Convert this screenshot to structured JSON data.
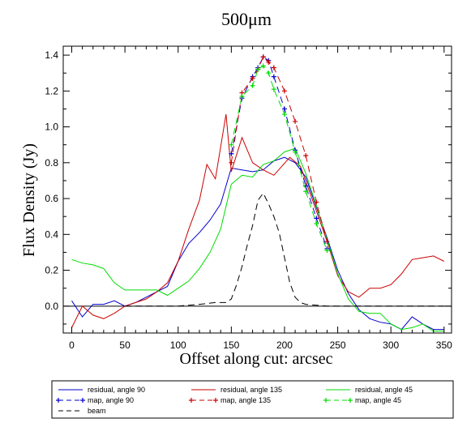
{
  "chart_data": {
    "type": "line",
    "title": "500μm",
    "xlabel": "Offset along cut: arcsec",
    "ylabel": "Flux Density (Jy)",
    "xlim": [
      -8,
      357
    ],
    "ylim": [
      -0.15,
      1.45
    ],
    "xticks": [
      0,
      50,
      100,
      150,
      200,
      250,
      300,
      350
    ],
    "yticks": [
      0.0,
      0.2,
      0.4,
      0.6,
      0.8,
      1.0,
      1.2,
      1.4
    ],
    "ytick_labels": [
      "0.0",
      "0.2",
      "0.4",
      "0.6",
      "0.8",
      "1.0",
      "1.2",
      "1.4"
    ],
    "zero_line": true,
    "legend_position": "bottom",
    "series": [
      {
        "name": "residual, angle 90",
        "color": "#0000cc",
        "style": "solid",
        "marker": "none",
        "x": [
          0,
          10,
          20,
          30,
          40,
          50,
          60,
          70,
          80,
          90,
          100,
          110,
          120,
          130,
          140,
          150,
          160,
          170,
          180,
          190,
          200,
          210,
          220,
          230,
          240,
          250,
          260,
          270,
          280,
          290,
          300,
          310,
          320,
          330,
          340,
          350
        ],
        "y": [
          0.03,
          -0.06,
          0.01,
          0.01,
          0.03,
          0.0,
          0.02,
          0.05,
          0.08,
          0.11,
          0.25,
          0.35,
          0.41,
          0.48,
          0.57,
          0.77,
          0.76,
          0.75,
          0.76,
          0.81,
          0.83,
          0.8,
          0.72,
          0.55,
          0.38,
          0.2,
          0.07,
          -0.02,
          -0.07,
          -0.09,
          -0.1,
          -0.13,
          -0.06,
          -0.1,
          -0.13,
          -0.13
        ]
      },
      {
        "name": "residual, angle 135",
        "color": "#cc0000",
        "style": "solid",
        "marker": "none",
        "x": [
          0,
          10,
          20,
          30,
          40,
          50,
          60,
          70,
          80,
          90,
          100,
          110,
          120,
          127,
          135,
          145,
          150,
          160,
          170,
          180,
          190,
          205,
          215,
          230,
          240,
          250,
          260,
          270,
          280,
          290,
          300,
          310,
          320,
          330,
          340,
          350
        ],
        "y": [
          -0.12,
          0.0,
          -0.05,
          -0.07,
          -0.04,
          0.0,
          0.02,
          0.04,
          0.08,
          0.13,
          0.25,
          0.43,
          0.59,
          0.79,
          0.71,
          1.07,
          0.75,
          0.94,
          0.8,
          0.76,
          0.73,
          0.83,
          0.78,
          0.53,
          0.36,
          0.17,
          0.08,
          0.05,
          0.1,
          0.1,
          0.12,
          0.18,
          0.26,
          0.27,
          0.28,
          0.25
        ]
      },
      {
        "name": "residual, angle 45",
        "color": "#00dd00",
        "style": "solid",
        "marker": "none",
        "x": [
          0,
          10,
          20,
          30,
          40,
          50,
          60,
          70,
          80,
          90,
          100,
          110,
          120,
          130,
          140,
          150,
          160,
          170,
          180,
          190,
          200,
          210,
          220,
          230,
          240,
          250,
          260,
          270,
          280,
          290,
          300,
          310,
          320,
          330,
          340,
          350
        ],
        "y": [
          0.26,
          0.24,
          0.23,
          0.21,
          0.13,
          0.09,
          0.09,
          0.09,
          0.09,
          0.06,
          0.1,
          0.14,
          0.21,
          0.3,
          0.43,
          0.68,
          0.73,
          0.72,
          0.79,
          0.81,
          0.86,
          0.88,
          0.74,
          0.56,
          0.37,
          0.18,
          0.04,
          -0.03,
          -0.04,
          -0.04,
          -0.1,
          -0.13,
          -0.12,
          -0.1,
          -0.14,
          -0.14
        ]
      },
      {
        "name": "map, angle 90",
        "color": "#0000cc",
        "style": "dashed",
        "marker": "plus",
        "x": [
          150,
          160,
          170,
          175,
          180,
          185,
          190,
          200,
          210,
          220,
          230,
          240
        ],
        "y": [
          0.85,
          1.16,
          1.28,
          1.33,
          1.39,
          1.37,
          1.28,
          1.1,
          0.87,
          0.67,
          0.49,
          0.32
        ]
      },
      {
        "name": "map, angle 135",
        "color": "#cc0000",
        "style": "dashed",
        "marker": "plus",
        "x": [
          150,
          160,
          170,
          175,
          180,
          185,
          190,
          200,
          210,
          220,
          230,
          240
        ],
        "y": [
          0.8,
          1.19,
          1.27,
          1.32,
          1.39,
          1.36,
          1.33,
          1.2,
          1.03,
          0.84,
          0.58,
          0.36
        ]
      },
      {
        "name": "map, angle 45",
        "color": "#00dd00",
        "style": "dashed",
        "marker": "plus",
        "x": [
          150,
          160,
          170,
          175,
          180,
          185,
          190,
          200,
          210,
          220,
          230,
          240
        ],
        "y": [
          0.9,
          1.17,
          1.23,
          1.32,
          1.34,
          1.3,
          1.21,
          1.07,
          0.86,
          0.64,
          0.46,
          0.31
        ]
      },
      {
        "name": "beam",
        "color": "#000000",
        "style": "dashed",
        "marker": "none",
        "x": [
          50,
          80,
          100,
          120,
          135,
          145,
          150,
          155,
          160,
          165,
          170,
          175,
          180,
          185,
          190,
          195,
          200,
          205,
          210,
          215,
          220,
          240,
          270,
          300,
          350
        ],
        "y": [
          0.0,
          0.0,
          0.0,
          0.01,
          0.02,
          0.02,
          0.04,
          0.12,
          0.22,
          0.34,
          0.45,
          0.59,
          0.63,
          0.57,
          0.5,
          0.41,
          0.27,
          0.13,
          0.05,
          0.02,
          0.01,
          0.0,
          0.0,
          0.0,
          0.0
        ]
      }
    ]
  }
}
